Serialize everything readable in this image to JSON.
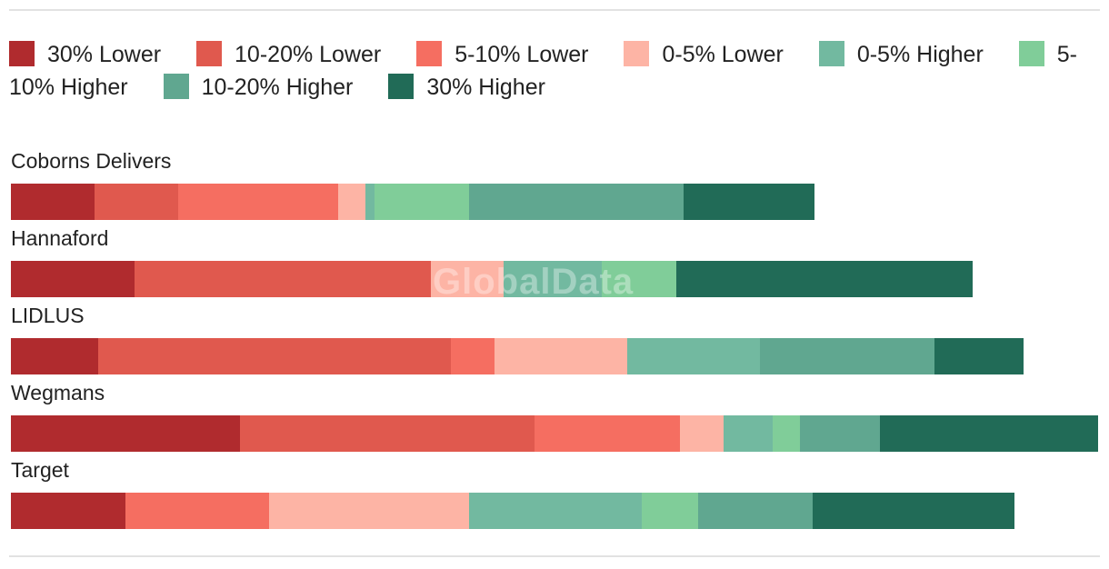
{
  "watermark": "GlobalData",
  "chart_data": {
    "type": "bar",
    "orientation": "horizontal",
    "stacked": true,
    "categories": [
      "Coborns Delivers",
      "Hannaford",
      "LIDLUS",
      "Wegmans",
      "Target"
    ],
    "series": [
      {
        "name": "30% Lower",
        "color": "#b02b2e",
        "values": [
          92,
          136,
          96,
          252,
          126
        ]
      },
      {
        "name": "10-20% Lower",
        "color": "#e0594e",
        "values": [
          92,
          326,
          388,
          324,
          0
        ]
      },
      {
        "name": "5-10% Lower",
        "color": "#f56e61",
        "values": [
          176,
          0,
          48,
          160,
          158
        ]
      },
      {
        "name": "0-5% Lower",
        "color": "#fdb4a5",
        "values": [
          30,
          80,
          146,
          48,
          220
        ]
      },
      {
        "name": "0-5% Higher",
        "color": "#72b9a0",
        "values": [
          10,
          108,
          146,
          54,
          190
        ]
      },
      {
        "name": "5-10% Higher",
        "color": "#80cd99",
        "values": [
          104,
          82,
          0,
          30,
          62
        ]
      },
      {
        "name": "10-20% Higher",
        "color": "#60a790",
        "values": [
          236,
          0,
          192,
          88,
          126
        ]
      },
      {
        "name": "30% Higher",
        "color": "#216b57",
        "values": [
          144,
          326,
          98,
          240,
          222
        ]
      }
    ],
    "grid": false,
    "legend_position": "top"
  }
}
